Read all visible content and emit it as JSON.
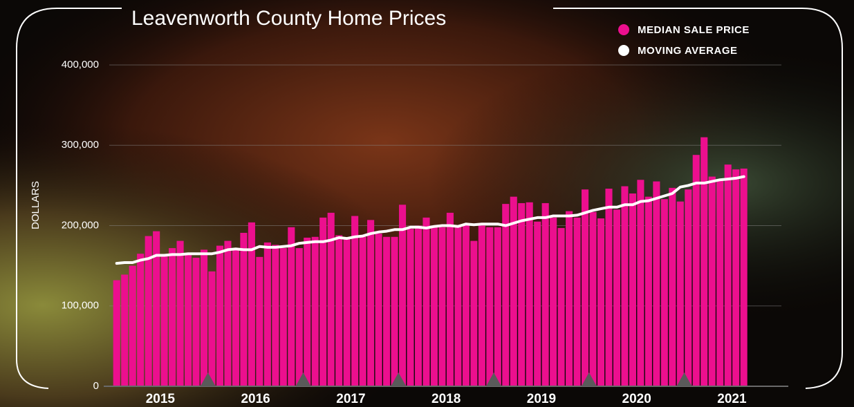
{
  "chart_data": {
    "type": "bar",
    "title": "Leavenworth County Home Prices",
    "y_label": "DOLLARS",
    "categories": [
      null,
      null,
      null,
      null,
      null,
      null,
      "2015",
      null,
      null,
      null,
      null,
      null,
      null,
      null,
      null,
      null,
      null,
      null,
      "2016",
      null,
      null,
      null,
      null,
      null,
      null,
      null,
      null,
      null,
      null,
      null,
      "2017",
      null,
      null,
      null,
      null,
      null,
      null,
      null,
      null,
      null,
      null,
      null,
      "2018",
      null,
      null,
      null,
      null,
      null,
      null,
      null,
      null,
      null,
      null,
      null,
      "2019",
      null,
      null,
      null,
      null,
      null,
      null,
      null,
      null,
      null,
      null,
      null,
      "2020",
      null,
      null,
      null,
      null,
      null,
      null,
      null,
      null,
      null,
      null,
      null,
      "2021",
      null
    ],
    "series": [
      {
        "name": "MEDIAN SALE PRICE",
        "type": "bar",
        "color": "#ec0f8e",
        "values": [
          132000,
          139000,
          150000,
          165000,
          187000,
          193000,
          163000,
          172000,
          181000,
          165000,
          160000,
          170000,
          143000,
          175000,
          181000,
          172000,
          191000,
          204000,
          161000,
          179000,
          176000,
          172000,
          198000,
          172000,
          185000,
          186000,
          210000,
          216000,
          188000,
          184000,
          212000,
          186000,
          207000,
          190000,
          186000,
          186000,
          226000,
          196000,
          200000,
          210000,
          198000,
          198000,
          216000,
          199000,
          201000,
          181000,
          200000,
          198000,
          198000,
          227000,
          236000,
          228000,
          229000,
          205000,
          228000,
          210000,
          197000,
          218000,
          210000,
          245000,
          217000,
          209000,
          246000,
          220000,
          249000,
          240000,
          257000,
          236000,
          255000,
          233000,
          247000,
          230000,
          245000,
          288000,
          310000,
          261000,
          257000,
          276000,
          270000,
          271000
        ]
      },
      {
        "name": "MOVING AVERAGE",
        "type": "line",
        "color": "#ffffff",
        "values": [
          153000,
          154000,
          154000,
          157000,
          159000,
          163000,
          163000,
          164000,
          164000,
          165000,
          165000,
          165000,
          165000,
          167000,
          170000,
          171000,
          170000,
          170000,
          174000,
          173000,
          173000,
          174000,
          175000,
          178000,
          179000,
          180000,
          180000,
          182000,
          185000,
          184000,
          186000,
          187000,
          190000,
          192000,
          193000,
          195000,
          195000,
          198000,
          198000,
          197000,
          199000,
          200000,
          200000,
          199000,
          202000,
          201000,
          202000,
          202000,
          202000,
          200000,
          203000,
          206000,
          208000,
          210000,
          210000,
          212000,
          212000,
          212000,
          213000,
          216000,
          219000,
          221000,
          223000,
          223000,
          226000,
          226000,
          230000,
          231000,
          234000,
          237000,
          240000,
          248000,
          250000,
          253000,
          253000,
          255000,
          257000,
          258000,
          259000,
          261000
        ]
      }
    ],
    "ylim": [
      0,
      400000
    ],
    "yticks": [
      0,
      {
        "value": 100000,
        "label": "100,000"
      },
      {
        "value": 200000,
        "label": "200,000"
      },
      {
        "value": 300000,
        "label": "300,000"
      },
      {
        "value": 400000,
        "label": "400,000"
      }
    ],
    "grid": true
  }
}
